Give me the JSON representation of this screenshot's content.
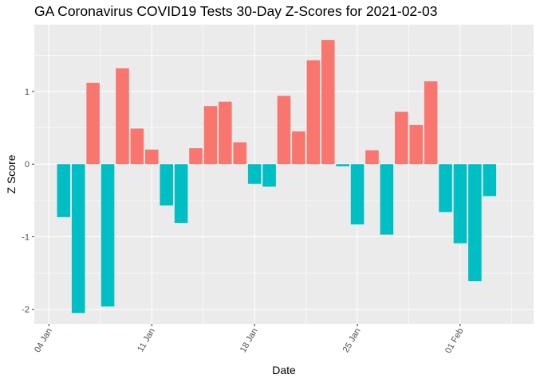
{
  "chart_data": {
    "type": "bar",
    "title": "GA Coronavirus COVID19 Tests 30-Day Z-Scores for 2021-02-03",
    "xlabel": "Date",
    "ylabel": "Z Score",
    "x_axis": {
      "type": "date",
      "tick_labels": [
        "04 Jan",
        "11 Jan",
        "18 Jan",
        "25 Jan",
        "01 Feb"
      ],
      "tick_dates": [
        "2021-01-04",
        "2021-01-11",
        "2021-01-18",
        "2021-01-25",
        "2021-02-01"
      ],
      "range": [
        "2021-01-03",
        "2021-02-06"
      ]
    },
    "y_axis": {
      "ticks": [
        -2,
        -1,
        0,
        1
      ],
      "tick_labels": [
        "-2",
        "-1",
        "0",
        "1"
      ],
      "range": [
        -2.2,
        1.92
      ]
    },
    "grid": true,
    "legend": "none",
    "colors": {
      "positive": "#F8766D",
      "negative": "#00BFC4",
      "panel": "#EBEBEB",
      "grid": "#FFFFFF"
    },
    "x": [
      "2021-01-05",
      "2021-01-06",
      "2021-01-07",
      "2021-01-08",
      "2021-01-09",
      "2021-01-10",
      "2021-01-11",
      "2021-01-12",
      "2021-01-13",
      "2021-01-14",
      "2021-01-15",
      "2021-01-16",
      "2021-01-17",
      "2021-01-18",
      "2021-01-19",
      "2021-01-20",
      "2021-01-21",
      "2021-01-22",
      "2021-01-23",
      "2021-01-24",
      "2021-01-25",
      "2021-01-26",
      "2021-01-27",
      "2021-01-28",
      "2021-01-29",
      "2021-01-30",
      "2021-01-31",
      "2021-02-01",
      "2021-02-02",
      "2021-02-03"
    ],
    "values": [
      -0.73,
      -2.05,
      1.12,
      -1.96,
      1.32,
      0.49,
      0.2,
      -0.57,
      -0.81,
      0.22,
      0.8,
      0.86,
      0.3,
      -0.27,
      -0.31,
      0.94,
      0.45,
      1.43,
      1.71,
      -0.03,
      -0.83,
      0.19,
      -0.97,
      0.72,
      0.54,
      1.14,
      -0.66,
      -1.09,
      -1.61,
      -0.44
    ]
  }
}
